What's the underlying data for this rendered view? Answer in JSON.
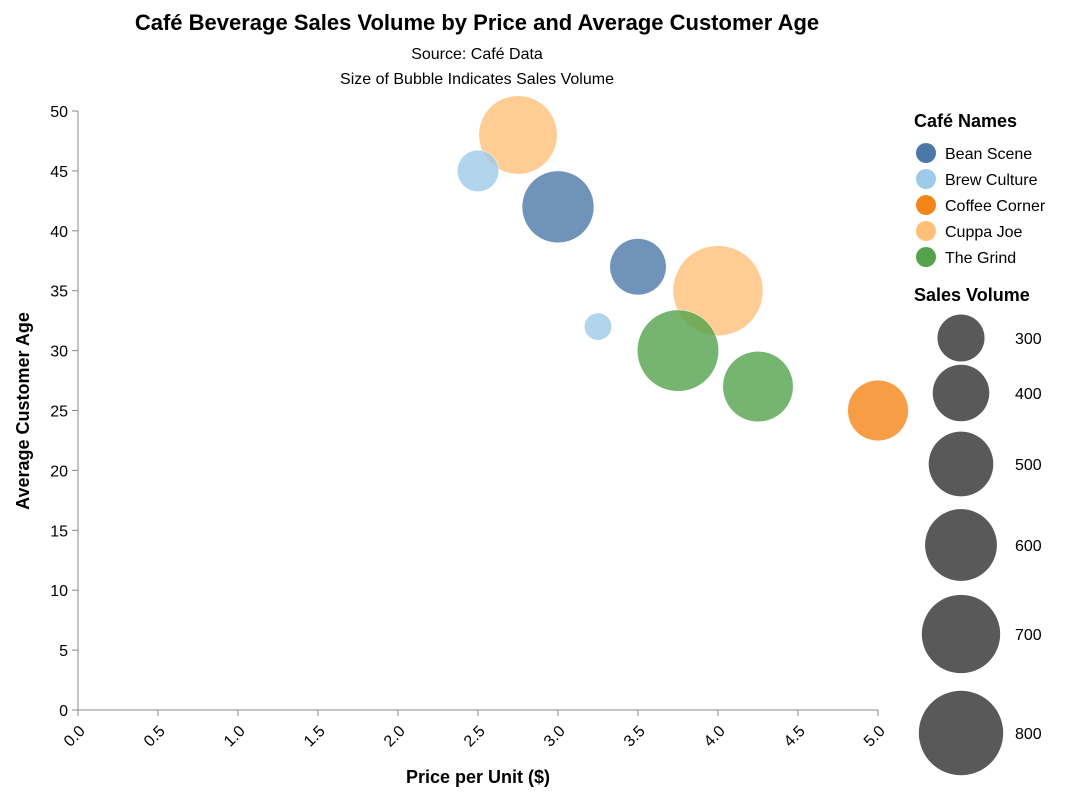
{
  "chart_data": {
    "type": "scatter",
    "title": "Café Beverage Sales Volume by Price and Average Customer Age",
    "subtitle": [
      "Source: Café Data",
      "Size of Bubble Indicates Sales Volume"
    ],
    "xlabel": "Price per Unit ($)",
    "ylabel": "Average Customer Age",
    "xlim": [
      0,
      5
    ],
    "ylim": [
      0,
      50
    ],
    "x_ticks": [
      "0.0",
      "0.5",
      "1.0",
      "1.5",
      "2.0",
      "2.5",
      "3.0",
      "3.5",
      "4.0",
      "4.5",
      "5.0"
    ],
    "y_ticks": [
      "0",
      "5",
      "10",
      "15",
      "20",
      "25",
      "30",
      "35",
      "40",
      "45",
      "50"
    ],
    "grid": false,
    "color_legend_title": "Café Names",
    "size_legend_title": "Sales Volume",
    "legend_placement": "right",
    "series": [
      {
        "name": "Bean Scene",
        "color": "#4c78a8",
        "points": [
          {
            "x": 3.0,
            "y": 42,
            "sales": 600
          },
          {
            "x": 3.5,
            "y": 37,
            "sales": 400
          }
        ]
      },
      {
        "name": "Brew Culture",
        "color": "#9ecae9",
        "points": [
          {
            "x": 2.5,
            "y": 45,
            "sales": 250
          },
          {
            "x": 3.25,
            "y": 32,
            "sales": 150
          }
        ]
      },
      {
        "name": "Coffee Corner",
        "color": "#f58518",
        "points": [
          {
            "x": 5.0,
            "y": 25,
            "sales": 450
          }
        ]
      },
      {
        "name": "Cuppa Joe",
        "color": "#ffbf79",
        "points": [
          {
            "x": 2.75,
            "y": 48,
            "sales": 700
          },
          {
            "x": 4.0,
            "y": 35,
            "sales": 900
          }
        ]
      },
      {
        "name": "The Grind",
        "color": "#54a24b",
        "points": [
          {
            "x": 3.75,
            "y": 30,
            "sales": 750
          },
          {
            "x": 4.25,
            "y": 27,
            "sales": 580
          }
        ]
      }
    ],
    "size_legend": {
      "values": [
        300,
        400,
        500,
        600,
        700,
        800
      ],
      "labels": [
        "300",
        "400",
        "500",
        "600",
        "700",
        "800"
      ],
      "color": "#595959"
    }
  }
}
